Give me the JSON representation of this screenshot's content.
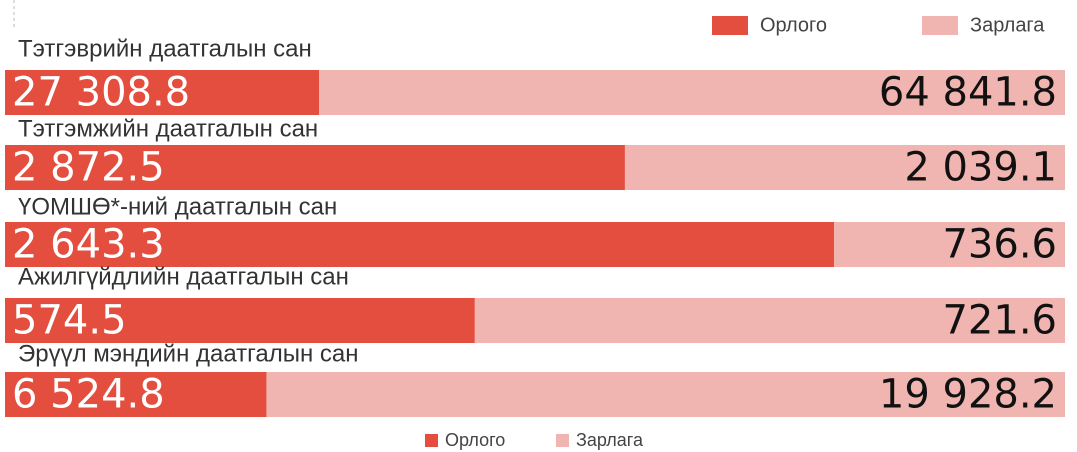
{
  "chart_data": {
    "type": "bar",
    "stacking": "percent",
    "orientation": "horizontal",
    "categories": [
      "Тэтгэврийн даатгалын сан",
      "Тэтгэмжийн даатгалын сан",
      "ҮОМШӨ*-ний даатгалын сан",
      "Ажилгүйдлийн даатгалын сан",
      "Эрүүл мэндийн даатгалын сан"
    ],
    "series": [
      {
        "name": "Орлого",
        "color": "#e34e3e",
        "values": [
          27308.8,
          2872.5,
          2643.3,
          574.5,
          6524.8
        ],
        "value_labels": [
          "27 308.8",
          "2 872.5",
          "2 643.3",
          "574.5",
          "6 524.8"
        ]
      },
      {
        "name": "Зарлага",
        "color": "#f0b5b0",
        "values": [
          64841.8,
          2039.1,
          736.6,
          721.6,
          19928.2
        ],
        "value_labels": [
          "64 841.8",
          "2 039.1",
          "736.6",
          "721.6",
          "19 928.2"
        ]
      }
    ],
    "legend": [
      "top-right",
      "bottom"
    ]
  }
}
